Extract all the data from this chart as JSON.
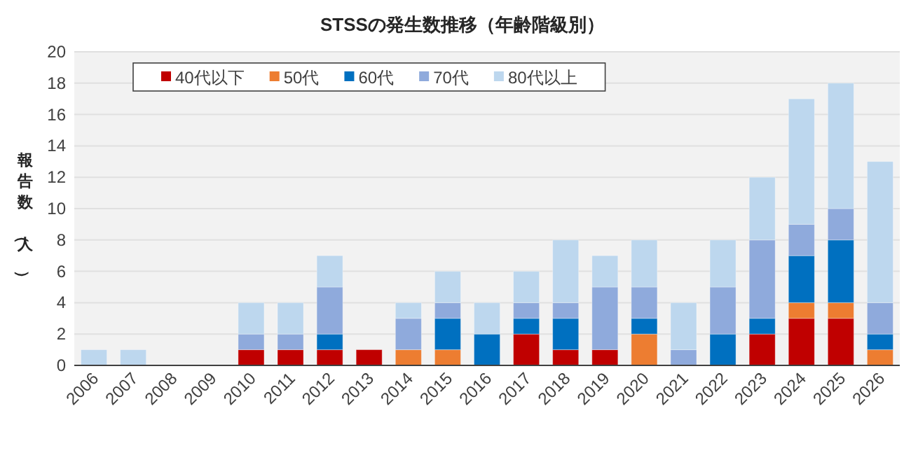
{
  "chart_data": {
    "type": "bar",
    "title": "STSSの発生数推移（年齢階級別）",
    "ylabel": "報告数（人）",
    "categories": [
      "2006",
      "2007",
      "2008",
      "2009",
      "2010",
      "2011",
      "2012",
      "2013",
      "2014",
      "2015",
      "2016",
      "2017",
      "2018",
      "2019",
      "2020",
      "2021",
      "2022",
      "2023",
      "2024",
      "2025",
      "2026"
    ],
    "stacked": true,
    "ylim": [
      0,
      20
    ],
    "yticks": [
      0,
      2,
      4,
      6,
      8,
      10,
      12,
      14,
      16,
      18,
      20
    ],
    "grid": "y",
    "legend": "top left",
    "series": [
      {
        "name": "40代以下",
        "color": "#c00000",
        "values": [
          0,
          0,
          0,
          0,
          1,
          1,
          1,
          1,
          0,
          0,
          0,
          2,
          1,
          1,
          0,
          0,
          0,
          2,
          3,
          3,
          0
        ]
      },
      {
        "name": "50代",
        "color": "#ed7d31",
        "values": [
          0,
          0,
          0,
          0,
          0,
          0,
          0,
          0,
          1,
          1,
          0,
          0,
          0,
          0,
          2,
          0,
          0,
          0,
          1,
          1,
          1
        ]
      },
      {
        "name": "60代",
        "color": "#0070c0",
        "values": [
          0,
          0,
          0,
          0,
          0,
          0,
          1,
          0,
          0,
          2,
          2,
          1,
          2,
          0,
          1,
          0,
          2,
          1,
          3,
          4,
          1
        ]
      },
      {
        "name": "70代",
        "color": "#8faadc",
        "values": [
          0,
          0,
          0,
          0,
          1,
          1,
          3,
          0,
          2,
          1,
          0,
          1,
          1,
          4,
          2,
          1,
          3,
          5,
          2,
          2,
          2
        ]
      },
      {
        "name": "80代以上",
        "color": "#bdd7ee",
        "values": [
          1,
          1,
          0,
          0,
          2,
          2,
          2,
          0,
          1,
          2,
          2,
          2,
          4,
          2,
          3,
          3,
          3,
          4,
          8,
          8,
          9
        ]
      }
    ]
  }
}
